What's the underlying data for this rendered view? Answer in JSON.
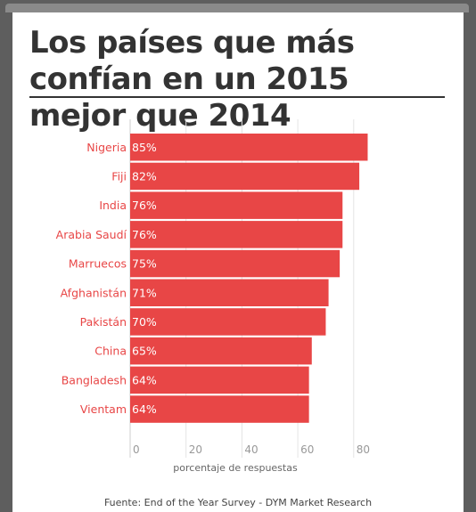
{
  "title": "Los países que más confían en un 2015 mejor que 2014",
  "source": "Fuente: End of the Year Survey - DYM Market Research",
  "colors": {
    "bar": "#e84646",
    "label": "#e84646",
    "axis": "#999999",
    "title": "#333333"
  },
  "chart_data": {
    "type": "bar",
    "orientation": "horizontal",
    "categories": [
      "Nigeria",
      "Fiji",
      "India",
      "Arabia Saudí",
      "Marruecos",
      "Afghanistán",
      "Pakistán",
      "China",
      "Bangladesh",
      "Vientam"
    ],
    "values": [
      85,
      82,
      76,
      76,
      75,
      71,
      70,
      65,
      64,
      64
    ],
    "data_labels": [
      "85%",
      "82%",
      "76%",
      "76%",
      "75%",
      "71%",
      "70%",
      "65%",
      "64%",
      "64%"
    ],
    "xlabel": "porcentaje de respuestas",
    "ylabel": "",
    "xlim": [
      0,
      85
    ],
    "xticks": [
      0,
      20,
      40,
      60,
      80
    ],
    "grid": true
  }
}
